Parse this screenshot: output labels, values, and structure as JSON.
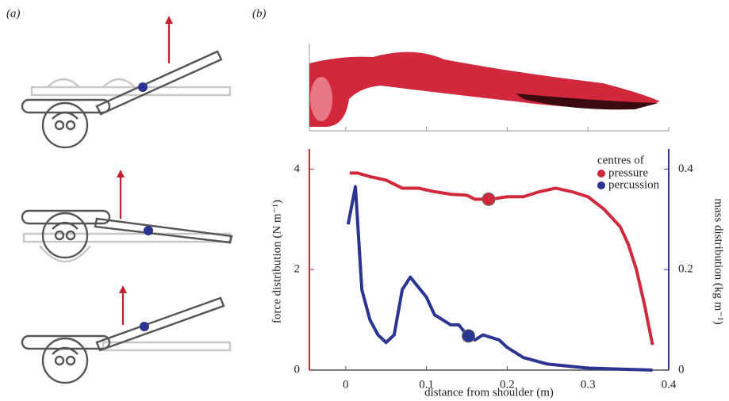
{
  "panel_labels": [
    "(a)",
    "(b)"
  ],
  "chart_data": {
    "type": "line",
    "xlabel": "distance from shoulder (m)",
    "ylabel": "force distribution (N m⁻¹)",
    "y2label": "mass distribution (kg m⁻¹)",
    "xlim": [
      -0.045,
      0.4
    ],
    "xticks": [
      0,
      0.1,
      0.2,
      0.3,
      0.4
    ],
    "ylim": [
      0,
      4.4
    ],
    "yticks": [
      0,
      2,
      4
    ],
    "y2lim": [
      0,
      0.44
    ],
    "y2ticks": [
      0,
      0.2,
      0.4
    ],
    "series": [
      {
        "name": "force",
        "color": "#d2283c",
        "axis": "y",
        "x": [
          0.005,
          0.015,
          0.03,
          0.05,
          0.07,
          0.09,
          0.11,
          0.13,
          0.15,
          0.16,
          0.18,
          0.2,
          0.22,
          0.24,
          0.26,
          0.28,
          0.3,
          0.32,
          0.34,
          0.35,
          0.36,
          0.37,
          0.38
        ],
        "values": [
          3.92,
          3.92,
          3.85,
          3.78,
          3.62,
          3.62,
          3.55,
          3.5,
          3.48,
          3.4,
          3.4,
          3.45,
          3.45,
          3.55,
          3.62,
          3.55,
          3.45,
          3.2,
          2.85,
          2.5,
          2.0,
          1.3,
          0.5
        ]
      },
      {
        "name": "mass",
        "color": "#2b3591",
        "axis": "y2",
        "x": [
          0.003,
          0.012,
          0.02,
          0.03,
          0.04,
          0.05,
          0.06,
          0.07,
          0.08,
          0.09,
          0.1,
          0.11,
          0.12,
          0.13,
          0.14,
          0.15,
          0.16,
          0.17,
          0.19,
          0.2,
          0.22,
          0.25,
          0.3,
          0.38
        ],
        "values": [
          0.29,
          0.365,
          0.16,
          0.1,
          0.07,
          0.055,
          0.07,
          0.16,
          0.185,
          0.165,
          0.145,
          0.11,
          0.1,
          0.09,
          0.09,
          0.07,
          0.06,
          0.07,
          0.06,
          0.045,
          0.025,
          0.012,
          0.004,
          0
        ]
      }
    ],
    "legend_title": "centres of",
    "markers": [
      {
        "name": "pressure",
        "color": "#d2283c",
        "x": 0.177,
        "y": 3.4,
        "axis": "y"
      },
      {
        "name": "percussion",
        "color": "#2b3591",
        "x": 0.152,
        "y": 0.068,
        "axis": "y2"
      }
    ]
  }
}
